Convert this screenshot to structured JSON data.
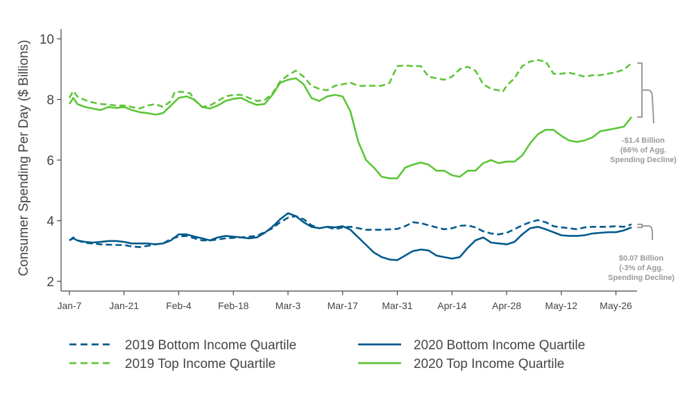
{
  "chart_data": {
    "type": "line",
    "ylabel": "Consumer Spending Per Day ($ Billions)",
    "xlabel": "",
    "ylim": [
      1.7,
      10.4
    ],
    "yticks": [
      2,
      4,
      6,
      8,
      10
    ],
    "xlim": [
      0,
      144
    ],
    "x_ticks": [
      {
        "x": 0,
        "label": "Jan-7"
      },
      {
        "x": 14,
        "label": "Jan-21"
      },
      {
        "x": 28,
        "label": "Feb-4"
      },
      {
        "x": 42,
        "label": "Feb-18"
      },
      {
        "x": 56,
        "label": "Mar-3"
      },
      {
        "x": 70,
        "label": "Mar-17"
      },
      {
        "x": 84,
        "label": "Mar-31"
      },
      {
        "x": 98,
        "label": "Apr-14"
      },
      {
        "x": 112,
        "label": "Apr-28"
      },
      {
        "x": 126,
        "label": "May-12"
      },
      {
        "x": 140,
        "label": "May-26"
      }
    ],
    "grid": false,
    "legend_position": "bottom",
    "series": [
      {
        "name": "2019 Bottom Income Quartile",
        "color": "#005A8B",
        "dash": "dashed",
        "points": [
          [
            0,
            3.35
          ],
          [
            1,
            3.45
          ],
          [
            2,
            3.35
          ],
          [
            4,
            3.27
          ],
          [
            8,
            3.22
          ],
          [
            12,
            3.2
          ],
          [
            14,
            3.2
          ],
          [
            16,
            3.15
          ],
          [
            18,
            3.13
          ],
          [
            20,
            3.17
          ],
          [
            22,
            3.22
          ],
          [
            24,
            3.25
          ],
          [
            26,
            3.4
          ],
          [
            28,
            3.48
          ],
          [
            30,
            3.5
          ],
          [
            32,
            3.42
          ],
          [
            34,
            3.35
          ],
          [
            36,
            3.35
          ],
          [
            38,
            3.38
          ],
          [
            40,
            3.42
          ],
          [
            44,
            3.45
          ],
          [
            48,
            3.5
          ],
          [
            52,
            3.75
          ],
          [
            54,
            3.95
          ],
          [
            56,
            4.1
          ],
          [
            58,
            4.15
          ],
          [
            60,
            4.05
          ],
          [
            62,
            3.85
          ],
          [
            64,
            3.75
          ],
          [
            66,
            3.8
          ],
          [
            68,
            3.72
          ],
          [
            70,
            3.78
          ],
          [
            72,
            3.8
          ],
          [
            74,
            3.75
          ],
          [
            76,
            3.7
          ],
          [
            80,
            3.7
          ],
          [
            84,
            3.73
          ],
          [
            86,
            3.82
          ],
          [
            88,
            3.95
          ],
          [
            90,
            3.92
          ],
          [
            92,
            3.85
          ],
          [
            94,
            3.78
          ],
          [
            96,
            3.72
          ],
          [
            98,
            3.75
          ],
          [
            100,
            3.83
          ],
          [
            102,
            3.85
          ],
          [
            104,
            3.78
          ],
          [
            106,
            3.65
          ],
          [
            108,
            3.58
          ],
          [
            110,
            3.55
          ],
          [
            112,
            3.6
          ],
          [
            114,
            3.72
          ],
          [
            116,
            3.85
          ],
          [
            118,
            3.95
          ],
          [
            120,
            4.02
          ],
          [
            122,
            3.95
          ],
          [
            124,
            3.82
          ],
          [
            126,
            3.78
          ],
          [
            128,
            3.75
          ],
          [
            130,
            3.72
          ],
          [
            132,
            3.78
          ],
          [
            134,
            3.8
          ],
          [
            136,
            3.8
          ],
          [
            138,
            3.8
          ],
          [
            140,
            3.82
          ],
          [
            142,
            3.8
          ],
          [
            144,
            3.88
          ]
        ]
      },
      {
        "name": "2019 Top Income Quartile",
        "color": "#5CC536",
        "dash": "dashed",
        "points": [
          [
            0,
            8.05
          ],
          [
            1,
            8.28
          ],
          [
            2,
            8.1
          ],
          [
            4,
            7.98
          ],
          [
            6,
            7.9
          ],
          [
            8,
            7.85
          ],
          [
            10,
            7.83
          ],
          [
            12,
            7.8
          ],
          [
            14,
            7.8
          ],
          [
            16,
            7.75
          ],
          [
            18,
            7.7
          ],
          [
            20,
            7.8
          ],
          [
            22,
            7.85
          ],
          [
            24,
            7.75
          ],
          [
            26,
            7.95
          ],
          [
            27,
            8.25
          ],
          [
            29,
            8.25
          ],
          [
            31,
            8.2
          ],
          [
            32,
            7.98
          ],
          [
            34,
            7.75
          ],
          [
            36,
            7.8
          ],
          [
            38,
            7.95
          ],
          [
            40,
            8.1
          ],
          [
            42,
            8.15
          ],
          [
            44,
            8.15
          ],
          [
            46,
            8.05
          ],
          [
            48,
            7.95
          ],
          [
            50,
            7.98
          ],
          [
            52,
            8.2
          ],
          [
            54,
            8.6
          ],
          [
            56,
            8.8
          ],
          [
            58,
            8.95
          ],
          [
            60,
            8.75
          ],
          [
            62,
            8.45
          ],
          [
            64,
            8.35
          ],
          [
            66,
            8.3
          ],
          [
            68,
            8.45
          ],
          [
            70,
            8.5
          ],
          [
            72,
            8.55
          ],
          [
            74,
            8.45
          ],
          [
            76,
            8.45
          ],
          [
            78,
            8.45
          ],
          [
            80,
            8.45
          ],
          [
            82,
            8.55
          ],
          [
            84,
            9.1
          ],
          [
            86,
            9.12
          ],
          [
            88,
            9.1
          ],
          [
            90,
            9.1
          ],
          [
            92,
            8.75
          ],
          [
            94,
            8.7
          ],
          [
            96,
            8.65
          ],
          [
            98,
            8.75
          ],
          [
            100,
            9.0
          ],
          [
            102,
            9.08
          ],
          [
            104,
            8.95
          ],
          [
            106,
            8.5
          ],
          [
            108,
            8.35
          ],
          [
            110,
            8.3
          ],
          [
            111,
            8.25
          ],
          [
            112,
            8.45
          ],
          [
            114,
            8.7
          ],
          [
            116,
            9.1
          ],
          [
            118,
            9.25
          ],
          [
            120,
            9.3
          ],
          [
            122,
            9.25
          ],
          [
            124,
            8.85
          ],
          [
            126,
            8.85
          ],
          [
            128,
            8.88
          ],
          [
            130,
            8.82
          ],
          [
            132,
            8.75
          ],
          [
            134,
            8.8
          ],
          [
            136,
            8.8
          ],
          [
            138,
            8.85
          ],
          [
            140,
            8.9
          ],
          [
            142,
            8.98
          ],
          [
            144,
            9.2
          ]
        ]
      },
      {
        "name": "2020 Bottom Income Quartile",
        "color": "#005A8B",
        "dash": "solid",
        "points": [
          [
            0,
            3.35
          ],
          [
            1,
            3.42
          ],
          [
            2,
            3.35
          ],
          [
            4,
            3.3
          ],
          [
            6,
            3.28
          ],
          [
            8,
            3.3
          ],
          [
            10,
            3.33
          ],
          [
            12,
            3.33
          ],
          [
            14,
            3.3
          ],
          [
            16,
            3.25
          ],
          [
            18,
            3.25
          ],
          [
            20,
            3.25
          ],
          [
            22,
            3.22
          ],
          [
            24,
            3.25
          ],
          [
            26,
            3.35
          ],
          [
            28,
            3.55
          ],
          [
            30,
            3.55
          ],
          [
            32,
            3.48
          ],
          [
            34,
            3.42
          ],
          [
            36,
            3.35
          ],
          [
            38,
            3.45
          ],
          [
            40,
            3.5
          ],
          [
            44,
            3.45
          ],
          [
            46,
            3.42
          ],
          [
            48,
            3.45
          ],
          [
            50,
            3.6
          ],
          [
            52,
            3.8
          ],
          [
            54,
            4.05
          ],
          [
            56,
            4.25
          ],
          [
            58,
            4.15
          ],
          [
            60,
            3.95
          ],
          [
            62,
            3.8
          ],
          [
            64,
            3.75
          ],
          [
            66,
            3.8
          ],
          [
            68,
            3.78
          ],
          [
            70,
            3.82
          ],
          [
            72,
            3.7
          ],
          [
            74,
            3.45
          ],
          [
            76,
            3.2
          ],
          [
            78,
            2.95
          ],
          [
            80,
            2.8
          ],
          [
            82,
            2.72
          ],
          [
            84,
            2.7
          ],
          [
            86,
            2.85
          ],
          [
            88,
            3.0
          ],
          [
            90,
            3.05
          ],
          [
            92,
            3.02
          ],
          [
            94,
            2.85
          ],
          [
            96,
            2.8
          ],
          [
            98,
            2.75
          ],
          [
            100,
            2.8
          ],
          [
            102,
            3.1
          ],
          [
            104,
            3.35
          ],
          [
            106,
            3.45
          ],
          [
            108,
            3.28
          ],
          [
            110,
            3.25
          ],
          [
            112,
            3.22
          ],
          [
            114,
            3.3
          ],
          [
            116,
            3.55
          ],
          [
            118,
            3.75
          ],
          [
            120,
            3.8
          ],
          [
            122,
            3.72
          ],
          [
            124,
            3.62
          ],
          [
            126,
            3.52
          ],
          [
            128,
            3.5
          ],
          [
            130,
            3.5
          ],
          [
            132,
            3.52
          ],
          [
            134,
            3.58
          ],
          [
            136,
            3.6
          ],
          [
            138,
            3.62
          ],
          [
            140,
            3.62
          ],
          [
            142,
            3.68
          ],
          [
            144,
            3.78
          ]
        ]
      },
      {
        "name": "2020 Top Income Quartile",
        "color": "#5CC536",
        "dash": "solid",
        "points": [
          [
            0,
            7.85
          ],
          [
            1,
            8.05
          ],
          [
            2,
            7.85
          ],
          [
            4,
            7.75
          ],
          [
            6,
            7.7
          ],
          [
            8,
            7.65
          ],
          [
            10,
            7.75
          ],
          [
            12,
            7.72
          ],
          [
            14,
            7.75
          ],
          [
            16,
            7.65
          ],
          [
            18,
            7.58
          ],
          [
            20,
            7.55
          ],
          [
            22,
            7.5
          ],
          [
            24,
            7.55
          ],
          [
            26,
            7.8
          ],
          [
            28,
            8.05
          ],
          [
            30,
            8.1
          ],
          [
            32,
            8.0
          ],
          [
            34,
            7.75
          ],
          [
            36,
            7.7
          ],
          [
            38,
            7.8
          ],
          [
            40,
            7.95
          ],
          [
            42,
            8.02
          ],
          [
            44,
            8.05
          ],
          [
            46,
            7.92
          ],
          [
            48,
            7.82
          ],
          [
            50,
            7.85
          ],
          [
            52,
            8.15
          ],
          [
            54,
            8.55
          ],
          [
            56,
            8.65
          ],
          [
            58,
            8.7
          ],
          [
            60,
            8.5
          ],
          [
            62,
            8.05
          ],
          [
            64,
            7.95
          ],
          [
            66,
            8.1
          ],
          [
            68,
            8.15
          ],
          [
            70,
            8.1
          ],
          [
            72,
            7.6
          ],
          [
            74,
            6.6
          ],
          [
            76,
            6.0
          ],
          [
            78,
            5.75
          ],
          [
            80,
            5.45
          ],
          [
            82,
            5.4
          ],
          [
            84,
            5.4
          ],
          [
            86,
            5.75
          ],
          [
            88,
            5.85
          ],
          [
            90,
            5.92
          ],
          [
            92,
            5.85
          ],
          [
            94,
            5.65
          ],
          [
            96,
            5.65
          ],
          [
            98,
            5.5
          ],
          [
            100,
            5.45
          ],
          [
            102,
            5.65
          ],
          [
            104,
            5.65
          ],
          [
            106,
            5.9
          ],
          [
            108,
            6.0
          ],
          [
            110,
            5.9
          ],
          [
            112,
            5.95
          ],
          [
            114,
            5.95
          ],
          [
            116,
            6.15
          ],
          [
            118,
            6.55
          ],
          [
            120,
            6.85
          ],
          [
            122,
            7.0
          ],
          [
            124,
            7.0
          ],
          [
            126,
            6.8
          ],
          [
            128,
            6.65
          ],
          [
            130,
            6.6
          ],
          [
            132,
            6.65
          ],
          [
            134,
            6.75
          ],
          [
            136,
            6.95
          ],
          [
            138,
            7.0
          ],
          [
            140,
            7.05
          ],
          [
            142,
            7.1
          ],
          [
            144,
            7.42
          ]
        ]
      }
    ],
    "annotations": [
      {
        "lines": [
          "-$1.4 Billion",
          "(66%  of Agg.",
          "Spending Decline)"
        ]
      },
      {
        "lines": [
          "$0.07 Billion",
          "(-3%  of Agg.",
          "Spending Decline)"
        ]
      }
    ]
  },
  "legend": {
    "items": [
      {
        "label": "2019 Bottom Income Quartile",
        "color": "#005A8B",
        "dash": "dashed"
      },
      {
        "label": "2020 Bottom Income Quartile",
        "color": "#005A8B",
        "dash": "solid"
      },
      {
        "label": "2019 Top Income Quartile",
        "color": "#5CC536",
        "dash": "dashed"
      },
      {
        "label": "2020 Top Income Quartile",
        "color": "#5CC536",
        "dash": "solid"
      }
    ]
  },
  "colors": {
    "axis": "#444444",
    "annotation": "#9a9a9a"
  }
}
